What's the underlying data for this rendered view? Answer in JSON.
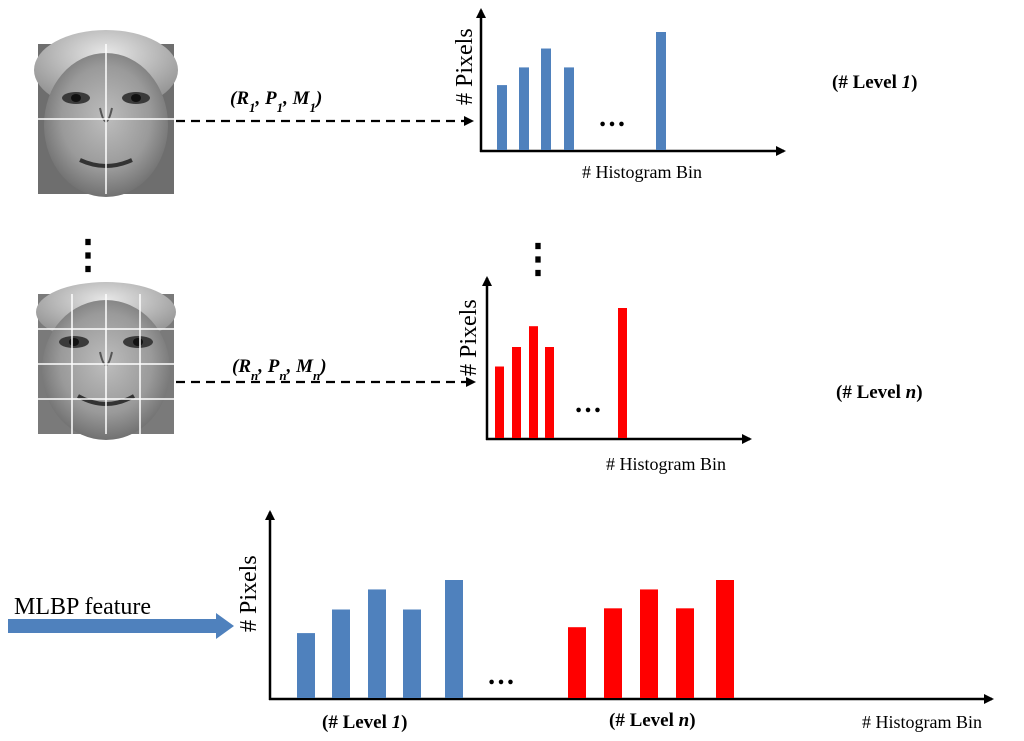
{
  "colors": {
    "blue": "#4f81bd",
    "red": "#ff0000",
    "axis": "#000000",
    "arrow": "#4f81bd",
    "face_grid": "#ffffff"
  },
  "level1": {
    "param_r": "R",
    "param_p": "P",
    "param_m": "M",
    "param_sub": "1",
    "y_label": "# Pixels",
    "x_label": "# Histogram Bin",
    "level_prefix": "(# Level ",
    "level_var": "1",
    "level_suffix": ")",
    "ellipsis": "…",
    "bars": [
      0.55,
      0.7,
      0.86,
      0.7,
      1.0
    ]
  },
  "leveln": {
    "param_r": "R",
    "param_p": "P",
    "param_m": "M",
    "param_sub": "n",
    "y_label": "# Pixels",
    "x_label": "# Histogram Bin",
    "level_prefix": "(# Level ",
    "level_var": "n",
    "level_suffix": ")",
    "ellipsis": "…",
    "bars": [
      0.55,
      0.7,
      0.86,
      0.7,
      1.0
    ]
  },
  "combined": {
    "input_label": "MLBP feature",
    "y_label": "# Pixels",
    "x_label": "# Histogram Bin",
    "ellipsis": "…",
    "group1_prefix": "(# Level ",
    "group1_var": "1",
    "group1_suffix": ")",
    "groupn_prefix": "(# Level ",
    "groupn_var": "n",
    "groupn_suffix": ")",
    "blue_bars": [
      0.55,
      0.75,
      0.92,
      0.75,
      1.0
    ],
    "red_bars": [
      0.6,
      0.76,
      0.92,
      0.76,
      1.0
    ]
  },
  "vertical_dots": "⋮"
}
